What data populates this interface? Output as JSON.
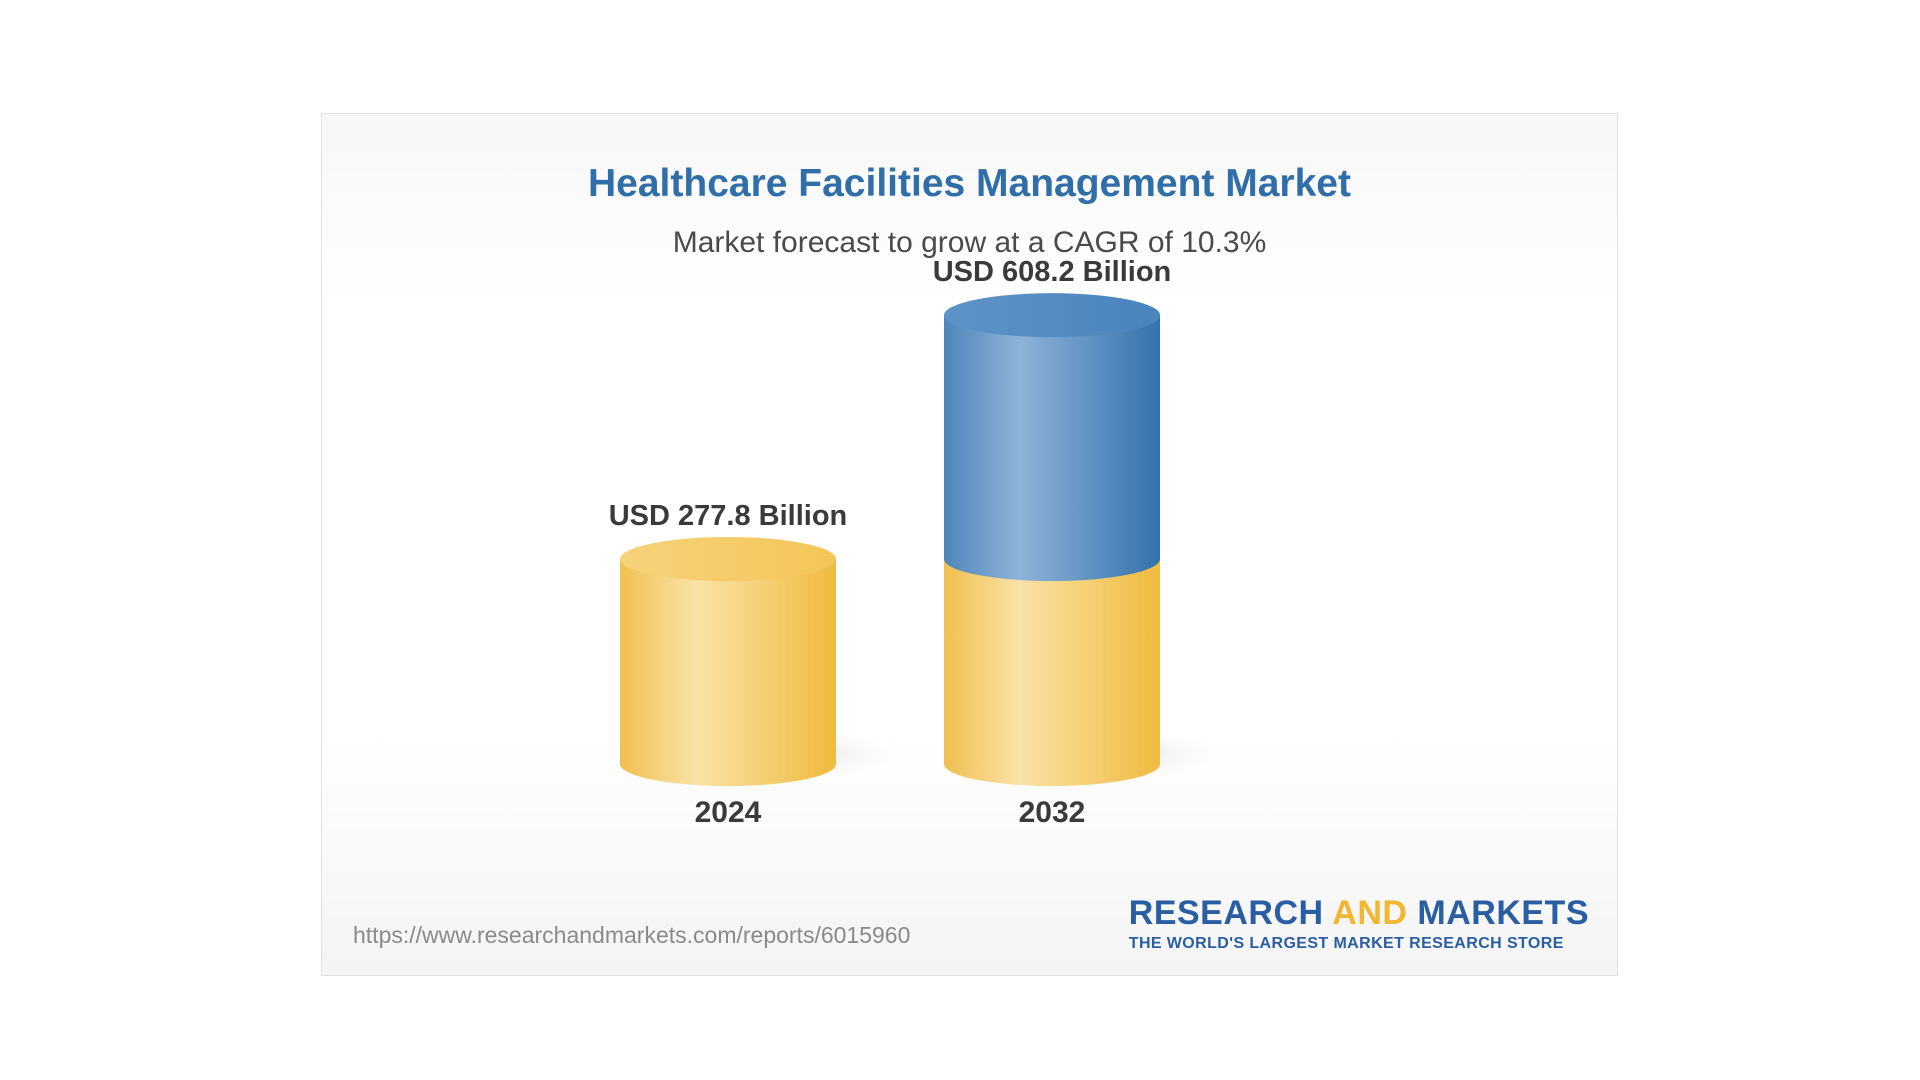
{
  "chart_data": {
    "type": "bar",
    "title": "Healthcare Facilities Management Market",
    "subtitle": "Market forecast to grow at a CAGR of 10.3%",
    "categories": [
      "2024",
      "2032"
    ],
    "values": [
      277.8,
      608.2
    ],
    "value_labels": [
      "USD 277.8 Billion",
      "USD 608.2 Billion"
    ],
    "unit": "USD Billion",
    "style": "3d-cylinder",
    "base_segment_value": 277.8,
    "colors": {
      "title": "#2f6ea8",
      "base": "#f3c964",
      "growth": "#4a86bd"
    }
  },
  "footer": {
    "url": "https://www.researchandmarkets.com/reports/6015960"
  },
  "logo": {
    "word1": "RESEARCH",
    "word2": "AND",
    "word3": "MARKETS",
    "tagline": "THE WORLD'S LARGEST MARKET RESEARCH STORE"
  }
}
